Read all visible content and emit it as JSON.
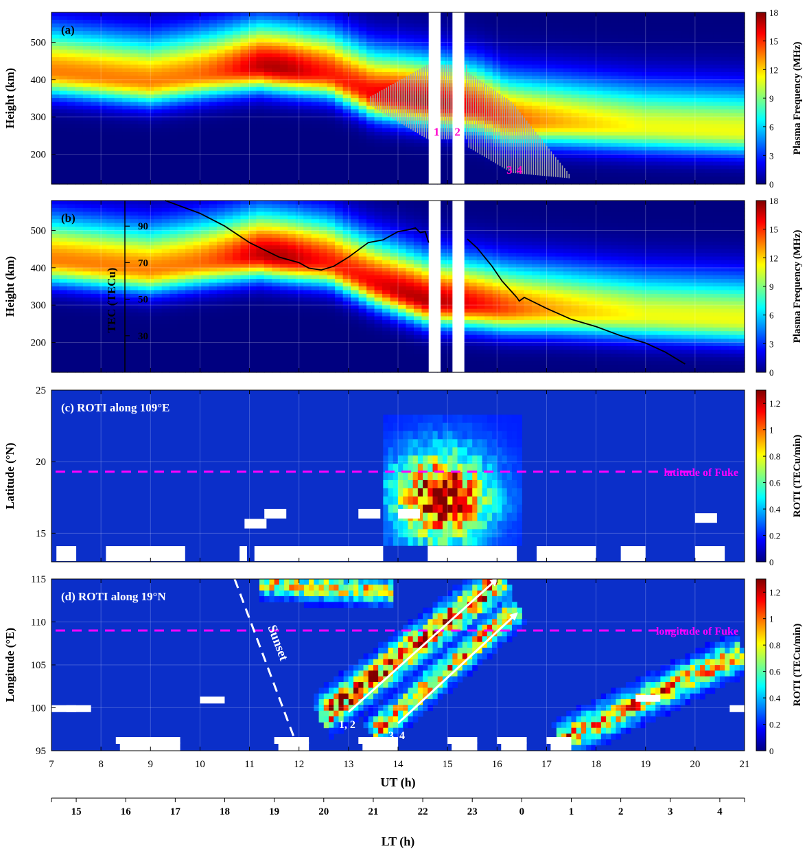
{
  "chart_data": [
    {
      "panel_label": "(a)",
      "type": "heatmap",
      "ylabel": "Height (km)",
      "ylim": [
        120,
        580
      ],
      "yticks": [
        200,
        300,
        400,
        500
      ],
      "xlim": [
        7,
        21
      ],
      "colorbar": {
        "label": "Plasma Frequency (MHz)",
        "ticks": [
          0,
          3,
          6,
          9,
          12,
          15,
          18
        ],
        "range": [
          0,
          18
        ],
        "colormap": "jet"
      },
      "data_gaps_ut": [
        [
          14.62,
          14.86
        ],
        [
          15.1,
          15.34
        ]
      ],
      "peak_height_km": [
        [
          7,
          420
        ],
        [
          9,
          395
        ],
        [
          11.2,
          435
        ],
        [
          12.6,
          415
        ],
        [
          13.5,
          360
        ],
        [
          14.6,
          340
        ],
        [
          15.6,
          320
        ],
        [
          16.2,
          290
        ],
        [
          17.2,
          285
        ],
        [
          19,
          270
        ],
        [
          21,
          260
        ]
      ],
      "spread_f_region": {
        "ut_range": [
          13.5,
          17.5
        ],
        "height_range_km": [
          130,
          450
        ],
        "color": "#a9a9a9"
      },
      "markers": [
        {
          "text": "1",
          "ut": 14.78,
          "height": 250
        },
        {
          "text": "2",
          "ut": 15.2,
          "height": 250
        },
        {
          "text": "3",
          "ut": 16.25,
          "height": 148
        },
        {
          "text": "4",
          "ut": 16.45,
          "height": 148
        }
      ]
    },
    {
      "panel_label": "(b)",
      "type": "heatmap",
      "ylabel": "Height (km)",
      "ylim": [
        120,
        580
      ],
      "yticks": [
        200,
        300,
        400,
        500
      ],
      "xlim": [
        7,
        21
      ],
      "colorbar": {
        "label": "Plasma Frequency (MHz)",
        "ticks": [
          0,
          3,
          6,
          9,
          12,
          15,
          18
        ],
        "range": [
          0,
          18
        ],
        "colormap": "jet"
      },
      "data_gaps_ut": [
        [
          14.62,
          14.86
        ],
        [
          15.1,
          15.34
        ]
      ],
      "peak_height_km": [
        [
          7,
          420
        ],
        [
          9,
          395
        ],
        [
          11.2,
          435
        ],
        [
          12.6,
          415
        ],
        [
          13.5,
          360
        ],
        [
          14.6,
          310
        ],
        [
          15.6,
          300
        ],
        [
          16.2,
          290
        ],
        [
          17.2,
          285
        ],
        [
          19,
          270
        ],
        [
          21,
          260
        ]
      ],
      "tec_axis": {
        "label": "TEC (TECu)",
        "ticks": [
          30,
          50,
          70,
          90
        ],
        "range": [
          10,
          104
        ]
      },
      "tec_curve": [
        [
          9.3,
          104
        ],
        [
          10,
          97
        ],
        [
          10.5,
          90
        ],
        [
          11,
          81
        ],
        [
          11.6,
          73
        ],
        [
          12,
          70
        ],
        [
          12.2,
          67
        ],
        [
          12.45,
          66
        ],
        [
          12.7,
          68
        ],
        [
          13.0,
          73
        ],
        [
          13.4,
          81
        ],
        [
          13.7,
          82.5
        ],
        [
          14.0,
          87
        ],
        [
          14.2,
          88
        ],
        [
          14.35,
          89
        ],
        [
          14.45,
          86.5
        ],
        [
          14.55,
          87
        ],
        [
          14.62,
          81
        ],
        [
          15.4,
          83
        ],
        [
          15.6,
          78
        ],
        [
          15.9,
          68
        ],
        [
          16.1,
          60
        ],
        [
          16.2,
          57
        ],
        [
          16.3,
          54
        ],
        [
          16.4,
          51
        ],
        [
          16.45,
          49
        ],
        [
          16.55,
          51
        ],
        [
          17.0,
          45
        ],
        [
          17.5,
          39
        ],
        [
          18.0,
          35
        ],
        [
          18.5,
          30
        ],
        [
          19.0,
          26
        ],
        [
          19.4,
          21
        ],
        [
          19.8,
          14.5
        ]
      ]
    },
    {
      "panel_label": "(c) ROTI along 109°E",
      "type": "heatmap",
      "ylabel": "Latitude (°N)",
      "ylim": [
        13,
        25
      ],
      "yticks": [
        15,
        20,
        25
      ],
      "xlim": [
        7,
        21
      ],
      "colorbar": {
        "label": "ROTI (TECu/min)",
        "ticks": [
          0,
          0.2,
          0.4,
          0.6,
          0.8,
          1,
          1.2
        ],
        "range": [
          0,
          1.3
        ],
        "colormap": "jet"
      },
      "reference_line": {
        "label": "latitude of Fuke",
        "value": 19.3,
        "color": "#ff00ff"
      },
      "high_roti_region": {
        "ut_range": [
          13.7,
          16.5
        ],
        "lat_range": [
          14,
          23
        ],
        "peak_value": 1.3
      },
      "no_data_ut_ranges": [
        [
          7.1,
          7.5
        ],
        [
          8.1,
          9.7
        ],
        [
          10.8,
          10.95
        ],
        [
          11.1,
          13.7
        ],
        [
          14.6,
          16.4
        ],
        [
          16.8,
          18.0
        ],
        [
          18.5,
          19.0
        ],
        [
          20.0,
          20.6
        ]
      ]
    },
    {
      "panel_label": "(d) ROTI along 19°N",
      "type": "heatmap",
      "ylabel": "Longitude (°E)",
      "ylim": [
        95,
        115
      ],
      "yticks": [
        95,
        100,
        105,
        110,
        115
      ],
      "xlim": [
        7,
        21
      ],
      "xticks": [
        7,
        8,
        9,
        10,
        11,
        12,
        13,
        14,
        15,
        16,
        17,
        18,
        19,
        20,
        21
      ],
      "xlabel": "UT (h)",
      "colorbar": {
        "label": "ROTI (TECu/min)",
        "ticks": [
          0,
          0.2,
          0.4,
          0.6,
          0.8,
          1,
          1.2
        ],
        "range": [
          0,
          1.3
        ],
        "colormap": "jet"
      },
      "reference_line": {
        "label": "longitude of Fuke",
        "value": 109,
        "color": "#ff00ff"
      },
      "sunset_line": {
        "label": "Sunset",
        "from": [
          10.7,
          115
        ],
        "to": [
          12.0,
          95
        ]
      },
      "arrows": [
        {
          "label": "1, 2",
          "from": [
            13.0,
            99.5
          ],
          "to": [
            16.0,
            115
          ]
        },
        {
          "label": "3, 4",
          "from": [
            14.0,
            98.2
          ],
          "to": [
            16.4,
            111
          ]
        }
      ],
      "bands": [
        {
          "from": [
            12.6,
            99.5
          ],
          "to": [
            16.0,
            114.5
          ],
          "width": 1.6,
          "peak": 1.25
        },
        {
          "from": [
            13.6,
            97.5
          ],
          "to": [
            16.3,
            111
          ],
          "width": 1.3,
          "peak": 1.0
        },
        {
          "from": [
            17.4,
            96.5
          ],
          "to": [
            20.8,
            106
          ],
          "width": 1.5,
          "peak": 1.0
        },
        {
          "from": [
            11.3,
            114.5
          ],
          "to": [
            13.8,
            113.5
          ],
          "width": 1.2,
          "peak": 0.85
        }
      ],
      "no_data_ut_ranges": [
        [
          8.3,
          9.6
        ],
        [
          11.5,
          12.2
        ],
        [
          13.2,
          14.0
        ],
        [
          15.0,
          15.6
        ],
        [
          16.0,
          16.6
        ],
        [
          17.0,
          17.5
        ]
      ]
    }
  ],
  "lt_axis": {
    "label": "LT (h)",
    "ticks": [
      15,
      16,
      17,
      18,
      19,
      20,
      21,
      22,
      23,
      0,
      1,
      2,
      3,
      4
    ],
    "offset_hours": 7.5
  }
}
